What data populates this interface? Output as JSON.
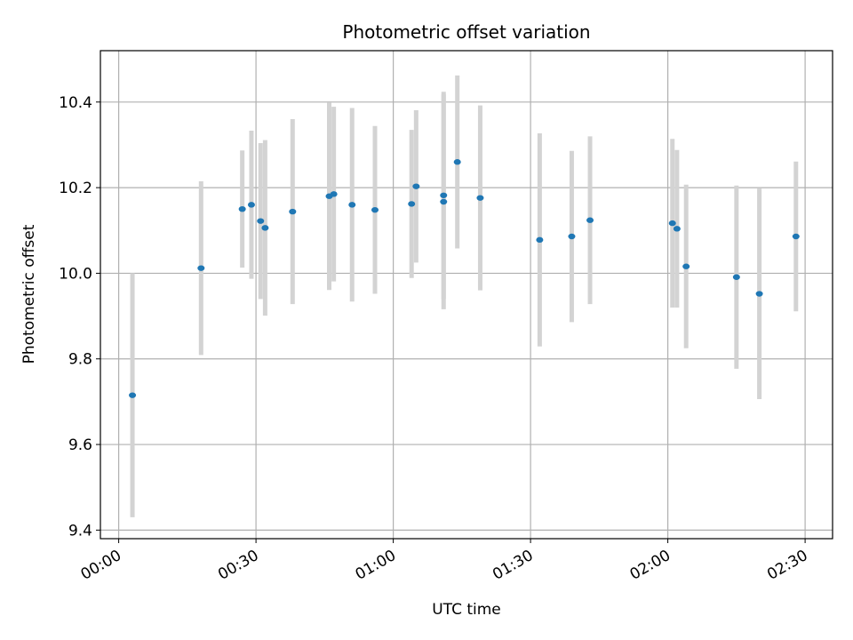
{
  "chart_data": {
    "type": "scatter",
    "title": "Photometric offset variation",
    "xlabel": "UTC time",
    "ylabel": "Photometric offset",
    "grid": true,
    "xlim": [
      "23:56",
      "02:36"
    ],
    "ylim": [
      9.38,
      10.52
    ],
    "x_ticks": [
      "00:00",
      "00:30",
      "01:00",
      "01:30",
      "02:00",
      "02:30"
    ],
    "y_ticks": [
      "9.4",
      "9.6",
      "9.8",
      "10.0",
      "10.2",
      "10.4"
    ],
    "colors": {
      "points": "#1f77b4",
      "errorbars": "#d3d3d3",
      "grid": "#b0b0b0"
    },
    "points": [
      {
        "x": "00:03",
        "y": 9.715,
        "err": 0.285
      },
      {
        "x": "00:18",
        "y": 10.012,
        "err": 0.203
      },
      {
        "x": "00:27",
        "y": 10.15,
        "err": 0.137
      },
      {
        "x": "00:29",
        "y": 10.16,
        "err": 0.173
      },
      {
        "x": "00:31",
        "y": 10.122,
        "err": 0.182
      },
      {
        "x": "00:32",
        "y": 10.106,
        "err": 0.205
      },
      {
        "x": "00:38",
        "y": 10.144,
        "err": 0.216
      },
      {
        "x": "00:46",
        "y": 10.18,
        "err": 0.219
      },
      {
        "x": "00:47",
        "y": 10.185,
        "err": 0.204
      },
      {
        "x": "00:51",
        "y": 10.16,
        "err": 0.226
      },
      {
        "x": "00:56",
        "y": 10.148,
        "err": 0.196
      },
      {
        "x": "01:04",
        "y": 10.162,
        "err": 0.173
      },
      {
        "x": "01:05",
        "y": 10.203,
        "err": 0.178
      },
      {
        "x": "01:11",
        "y": 10.167,
        "err": 0.251
      },
      {
        "x": "01:11",
        "y": 10.182,
        "err": 0.242
      },
      {
        "x": "01:14",
        "y": 10.26,
        "err": 0.202
      },
      {
        "x": "01:19",
        "y": 10.176,
        "err": 0.216
      },
      {
        "x": "01:32",
        "y": 10.078,
        "err": 0.249
      },
      {
        "x": "01:39",
        "y": 10.086,
        "err": 0.2
      },
      {
        "x": "01:43",
        "y": 10.124,
        "err": 0.196
      },
      {
        "x": "02:01",
        "y": 10.117,
        "err": 0.197
      },
      {
        "x": "02:02",
        "y": 10.104,
        "err": 0.184
      },
      {
        "x": "02:04",
        "y": 10.016,
        "err": 0.191
      },
      {
        "x": "02:15",
        "y": 9.991,
        "err": 0.214
      },
      {
        "x": "02:20",
        "y": 9.952,
        "err": 0.246
      },
      {
        "x": "02:28",
        "y": 10.086,
        "err": 0.175
      }
    ]
  }
}
